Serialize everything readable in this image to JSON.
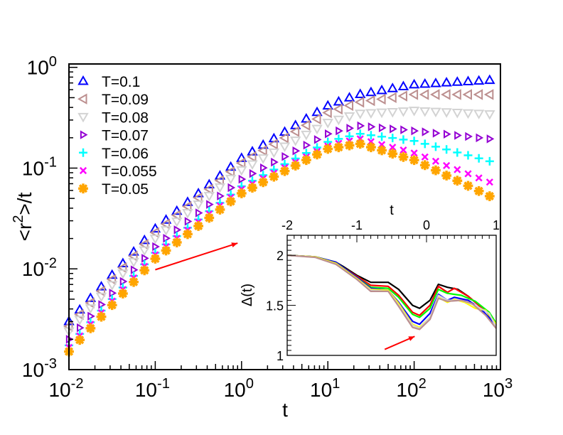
{
  "chart_data": [
    {
      "type": "scatter",
      "title": "",
      "xlabel": "t",
      "ylabel": "<r^2>/t",
      "xscale": "log",
      "yscale": "log",
      "xlim": [
        0.01,
        1000
      ],
      "ylim": [
        0.001,
        1.08
      ],
      "x_ticks": [
        {
          "value": 0.01,
          "base": "10",
          "exp": "-2"
        },
        {
          "value": 0.1,
          "base": "10",
          "exp": "-1"
        },
        {
          "value": 1,
          "base": "10",
          "exp": "0"
        },
        {
          "value": 10,
          "base": "10",
          "exp": "1"
        },
        {
          "value": 100,
          "base": "10",
          "exp": "2"
        },
        {
          "value": 1000,
          "base": "10",
          "exp": "3"
        }
      ],
      "y_ticks": [
        {
          "value": 0.001,
          "base": "10",
          "exp": "-3"
        },
        {
          "value": 0.01,
          "base": "10",
          "exp": "-2"
        },
        {
          "value": 0.1,
          "base": "10",
          "exp": "-1"
        },
        {
          "value": 1,
          "base": "10",
          "exp": "0"
        }
      ],
      "grid": false,
      "legend_position": "top-left",
      "log10_t": [
        -2,
        -1.875,
        -1.75,
        -1.625,
        -1.5,
        -1.375,
        -1.25,
        -1.125,
        -1,
        -0.875,
        -0.75,
        -0.625,
        -0.5,
        -0.375,
        -0.25,
        -0.125,
        0,
        0.125,
        0.25,
        0.375,
        0.5,
        0.625,
        0.75,
        0.875,
        1,
        1.125,
        1.25,
        1.375,
        1.5,
        1.625,
        1.75,
        1.875,
        2,
        2.125,
        2.25,
        2.375,
        2.5,
        2.625,
        2.75,
        2.875
      ],
      "series": [
        {
          "name": "T=0.1",
          "marker": "triangle-up",
          "color": "#0000ff",
          "values": [
            0.00302,
            0.00394,
            0.00513,
            0.00668,
            0.00871,
            0.01135,
            0.01479,
            0.01928,
            0.0251,
            0.0307,
            0.0376,
            0.046,
            0.0562,
            0.0688,
            0.0841,
            0.1029,
            0.1259,
            0.146,
            0.17,
            0.197,
            0.229,
            0.266,
            0.309,
            0.359,
            0.417,
            0.457,
            0.501,
            0.542,
            0.566,
            0.592,
            0.619,
            0.647,
            0.676,
            0.685,
            0.695,
            0.706,
            0.716,
            0.726,
            0.736,
            0.748
          ]
        },
        {
          "name": "T=0.09",
          "marker": "triangle-left",
          "color": "#bc8f8f",
          "values": [
            0.00269,
            0.00352,
            0.00459,
            0.00601,
            0.00785,
            0.01026,
            0.0134,
            0.0175,
            0.0229,
            0.0279,
            0.034,
            0.0416,
            0.0507,
            0.0618,
            0.0753,
            0.092,
            0.1122,
            0.1296,
            0.1496,
            0.1728,
            0.1995,
            0.2305,
            0.266,
            0.307,
            0.355,
            0.385,
            0.418,
            0.451,
            0.467,
            0.483,
            0.501,
            0.519,
            0.537,
            0.537,
            0.537,
            0.537,
            0.537,
            0.537,
            0.537,
            0.537
          ]
        },
        {
          "name": "T=0.08",
          "marker": "triangle-down",
          "color": "#d3d3d3",
          "values": [
            0.0024,
            0.00313,
            0.00407,
            0.00531,
            0.00692,
            0.00902,
            0.01175,
            0.0153,
            0.02,
            0.0243,
            0.0295,
            0.0359,
            0.0437,
            0.0531,
            0.0646,
            0.0785,
            0.0955,
            0.1094,
            0.1252,
            0.1432,
            0.164,
            0.188,
            0.215,
            0.246,
            0.282,
            0.303,
            0.327,
            0.348,
            0.352,
            0.357,
            0.361,
            0.366,
            0.372,
            0.367,
            0.363,
            0.359,
            0.355,
            0.351,
            0.347,
            0.343
          ]
        },
        {
          "name": "T=0.07",
          "marker": "triangle-right",
          "color": "#9400d3",
          "values": [
            0.002,
            0.0026,
            0.00339,
            0.00442,
            0.00575,
            0.0075,
            0.00977,
            0.01274,
            0.0166,
            0.0201,
            0.0244,
            0.0296,
            0.0359,
            0.0436,
            0.0528,
            0.064,
            0.0776,
            0.0883,
            0.1006,
            0.1146,
            0.1303,
            0.1483,
            0.169,
            0.192,
            0.219,
            0.234,
            0.249,
            0.263,
            0.257,
            0.251,
            0.245,
            0.24,
            0.234,
            0.229,
            0.222,
            0.217,
            0.211,
            0.206,
            0.2,
            0.195
          ]
        },
        {
          "name": "T=0.06",
          "marker": "plus",
          "color": "#00ffff",
          "values": [
            0.00174,
            0.00226,
            0.00295,
            0.00385,
            0.00501,
            0.00653,
            0.00851,
            0.01109,
            0.01445,
            0.01748,
            0.0211,
            0.0256,
            0.0309,
            0.0374,
            0.0452,
            0.0546,
            0.0661,
            0.075,
            0.0851,
            0.0966,
            0.1096,
            0.1245,
            0.1413,
            0.16,
            0.182,
            0.195,
            0.207,
            0.219,
            0.212,
            0.205,
            0.199,
            0.192,
            0.186,
            0.174,
            0.163,
            0.153,
            0.143,
            0.134,
            0.125,
            0.117
          ]
        },
        {
          "name": "T=0.055",
          "marker": "cross",
          "color": "#ff00ff",
          "values": [
            0.00166,
            0.00216,
            0.00282,
            0.00367,
            0.00479,
            0.00624,
            0.00813,
            0.01059,
            0.0138,
            0.01663,
            0.0201,
            0.0242,
            0.0292,
            0.0352,
            0.0424,
            0.0512,
            0.0617,
            0.0698,
            0.079,
            0.0893,
            0.1012,
            0.1146,
            0.1296,
            0.1466,
            0.166,
            0.176,
            0.186,
            0.195,
            0.183,
            0.171,
            0.161,
            0.151,
            0.141,
            0.129,
            0.117,
            0.106,
            0.0966,
            0.0879,
            0.0799,
            0.0726
          ]
        },
        {
          "name": "T=0.05",
          "marker": "asterisk",
          "color": "#ffa500",
          "values": [
            0.00151,
            0.00197,
            0.00257,
            0.00335,
            0.00437,
            0.00569,
            0.00741,
            0.00966,
            0.0126,
            0.0152,
            0.0183,
            0.0221,
            0.0266,
            0.0321,
            0.0387,
            0.0467,
            0.0562,
            0.0638,
            0.0724,
            0.0822,
            0.0933,
            0.1059,
            0.1202,
            0.1365,
            0.155,
            0.161,
            0.168,
            0.174,
            0.161,
            0.15,
            0.139,
            0.129,
            0.12,
            0.107,
            0.095,
            0.0843,
            0.075,
            0.0667,
            0.0592,
            0.0526
          ]
        }
      ],
      "annotations": [
        {
          "type": "arrow",
          "color": "#ff0000",
          "from": {
            "t": 0.1,
            "y": 0.0098
          },
          "to": {
            "t": 0.9,
            "y": 0.018
          }
        }
      ]
    },
    {
      "type": "line",
      "role": "inset",
      "title": "",
      "xlabel": "t",
      "ylabel": "Δ(t)",
      "xlim": [
        -2,
        1
      ],
      "ylim": [
        1,
        2.2
      ],
      "x_axis_position": "top",
      "x_ticks": [
        "-2",
        "-1",
        "0",
        "1"
      ],
      "x_tick_values": [
        -2,
        -1,
        0,
        1
      ],
      "y_ticks": [
        "1",
        "1.5",
        "2"
      ],
      "y_tick_values": [
        1,
        1.5,
        2
      ],
      "grid": false,
      "series": [
        {
          "name": "black",
          "color": "#000000",
          "x": [
            -2,
            -1.6,
            -1.3,
            -1.2,
            -1.0,
            -0.8,
            -0.55,
            -0.4,
            -0.2,
            -0.1,
            0.05,
            0.17,
            0.3,
            0.45,
            0.6,
            0.75,
            0.85,
            1.0
          ],
          "y": [
            2.0,
            1.985,
            1.93,
            1.89,
            1.8,
            1.73,
            1.73,
            1.66,
            1.5,
            1.47,
            1.55,
            1.71,
            1.68,
            1.66,
            1.59,
            1.5,
            1.45,
            1.3
          ]
        },
        {
          "name": "red",
          "color": "#ff0000",
          "x": [
            -2,
            -1.6,
            -1.3,
            -1.2,
            -1.0,
            -0.8,
            -0.55,
            -0.4,
            -0.2,
            -0.1,
            0.05,
            0.17,
            0.3,
            0.4,
            0.6,
            0.75,
            0.9,
            1.0
          ],
          "y": [
            2.0,
            1.985,
            1.93,
            1.88,
            1.79,
            1.7,
            1.69,
            1.6,
            1.43,
            1.4,
            1.5,
            1.69,
            1.63,
            1.67,
            1.59,
            1.5,
            1.42,
            1.3
          ]
        },
        {
          "name": "green",
          "color": "#00ff00",
          "x": [
            -2,
            -1.6,
            -1.3,
            -1.2,
            -1.0,
            -0.8,
            -0.55,
            -0.4,
            -0.2,
            -0.1,
            0.05,
            0.17,
            0.3,
            0.5,
            0.7,
            0.9,
            1.0
          ],
          "y": [
            2.0,
            1.985,
            1.93,
            1.88,
            1.78,
            1.68,
            1.67,
            1.58,
            1.41,
            1.38,
            1.47,
            1.66,
            1.62,
            1.6,
            1.54,
            1.43,
            1.32
          ]
        },
        {
          "name": "blue",
          "color": "#0000ff",
          "x": [
            -2,
            -1.6,
            -1.3,
            -1.2,
            -1.0,
            -0.8,
            -0.55,
            -0.4,
            -0.2,
            -0.1,
            0.05,
            0.17,
            0.3,
            0.4,
            0.6,
            0.8,
            1.0
          ],
          "y": [
            2.0,
            1.985,
            1.93,
            1.88,
            1.78,
            1.67,
            1.65,
            1.53,
            1.34,
            1.31,
            1.42,
            1.61,
            1.55,
            1.58,
            1.55,
            1.45,
            1.3
          ]
        },
        {
          "name": "yellow",
          "color": "#ffff00",
          "x": [
            -2,
            -1.6,
            -1.3,
            -1.2,
            -1.0,
            -0.8,
            -0.55,
            -0.4,
            -0.2,
            -0.1,
            0.05,
            0.17,
            0.3,
            0.4,
            0.55,
            0.7,
            0.85,
            1.0
          ],
          "y": [
            2.0,
            1.985,
            1.92,
            1.87,
            1.77,
            1.66,
            1.65,
            1.52,
            1.31,
            1.28,
            1.38,
            1.58,
            1.53,
            1.56,
            1.53,
            1.47,
            1.45,
            1.31
          ]
        },
        {
          "name": "light-gray",
          "color": "#d3d3d3",
          "x": [
            -2,
            -1.6,
            -1.3,
            -1.2,
            -1.0,
            -0.8,
            -0.55,
            -0.4,
            -0.2,
            -0.1,
            0.05,
            0.17,
            0.3,
            0.5,
            0.7,
            0.9,
            1.0
          ],
          "y": [
            2.0,
            1.98,
            1.91,
            1.86,
            1.76,
            1.65,
            1.64,
            1.5,
            1.3,
            1.27,
            1.38,
            1.6,
            1.55,
            1.55,
            1.5,
            1.42,
            1.28
          ]
        },
        {
          "name": "rosy-brown",
          "color": "#bc8f8f",
          "x": [
            -2,
            -1.6,
            -1.3,
            -1.2,
            -1.0,
            -0.8,
            -0.55,
            -0.4,
            -0.2,
            -0.1,
            0.05,
            0.17,
            0.3,
            0.5,
            0.65,
            0.85,
            1.0
          ],
          "y": [
            2.0,
            1.98,
            1.91,
            1.86,
            1.76,
            1.64,
            1.64,
            1.49,
            1.28,
            1.26,
            1.36,
            1.57,
            1.54,
            1.55,
            1.52,
            1.4,
            1.27
          ]
        }
      ],
      "annotations": [
        {
          "type": "arrow",
          "color": "#ff0000",
          "from": {
            "x": -0.6,
            "y": 1.06
          },
          "to": {
            "x": -0.17,
            "y": 1.19
          }
        }
      ]
    }
  ]
}
